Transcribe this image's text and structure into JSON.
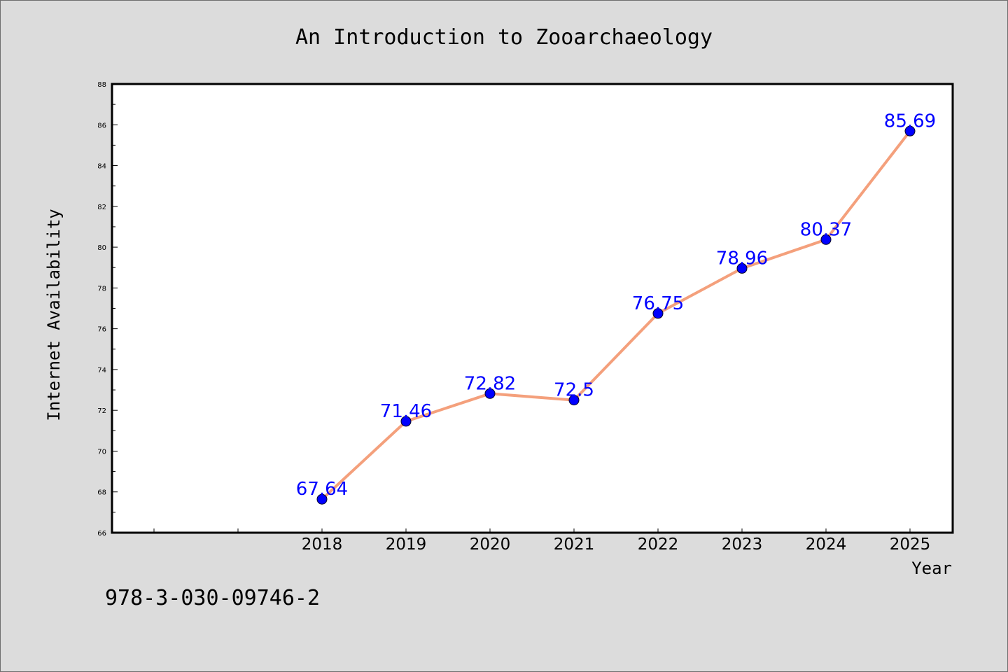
{
  "chart_data": {
    "type": "line",
    "title": "An Introduction to Zooarchaeology",
    "xlabel": "Year",
    "ylabel": "Internet Availability",
    "categories": [
      "2018",
      "2019",
      "2020",
      "2021",
      "2022",
      "2023",
      "2024",
      "2025"
    ],
    "series": [
      {
        "values": [
          67.64,
          71.46,
          72.82,
          72.5,
          76.75,
          78.96,
          80.37,
          85.69
        ],
        "data_labels": [
          "67.64",
          "71.46",
          "72.82",
          "72.5",
          "76.75",
          "78.96",
          "80.37",
          "85.69"
        ],
        "line_color": "#f4a07c",
        "marker_color": "#0000ff"
      }
    ],
    "ylim": [
      66,
      88
    ],
    "yticks": [
      "66",
      "68",
      "70",
      "72",
      "74",
      "76",
      "78",
      "80",
      "82",
      "84",
      "86",
      "88"
    ],
    "grid": false,
    "legend": "none"
  },
  "footer_text": "978-3-030-09746-2",
  "colors": {
    "background": "#dcdcdc",
    "plot_background": "#ffffff",
    "line": "#f4a07c",
    "marker": "#0000ff",
    "data_label": "#0000ff"
  }
}
